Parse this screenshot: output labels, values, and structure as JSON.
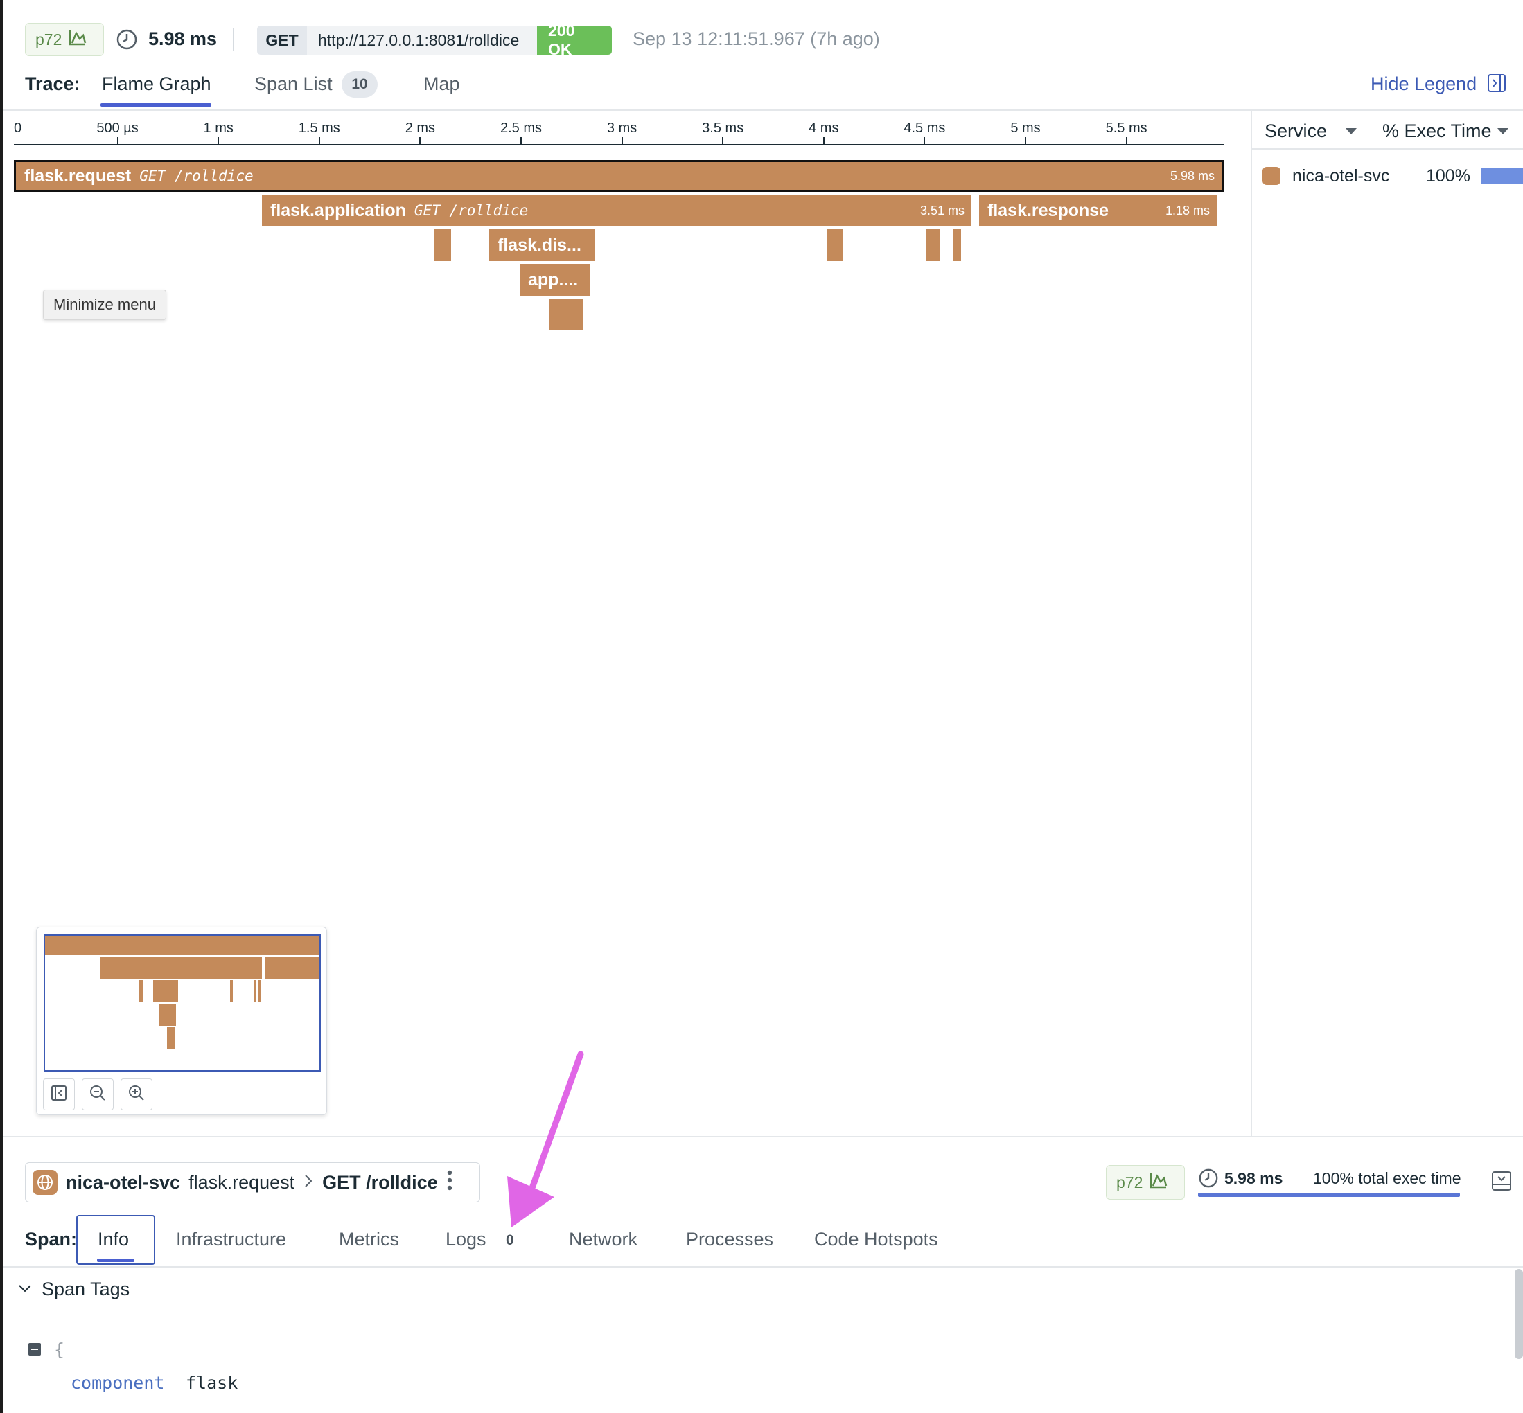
{
  "header": {
    "percentile": "p72",
    "duration": "5.98 ms",
    "method": "GET",
    "url": "http://127.0.0.1:8081/rolldice",
    "status": "200 OK",
    "timestamp": "Sep 13 12:11:51.967 (7h ago)"
  },
  "trace_tabs": {
    "label": "Trace:",
    "items": [
      {
        "label": "Flame Graph",
        "active": true
      },
      {
        "label": "Span List",
        "badge": "10"
      },
      {
        "label": "Map"
      }
    ],
    "hide_legend": "Hide Legend"
  },
  "axis": {
    "ticks": [
      "0",
      "500 µs",
      "1 ms",
      "1.5 ms",
      "2 ms",
      "2.5 ms",
      "3 ms",
      "3.5 ms",
      "4 ms",
      "4.5 ms",
      "5 ms",
      "5.5 ms"
    ]
  },
  "spans": {
    "request": {
      "name": "flask.request",
      "resource": "GET /rolldice",
      "duration": "5.98 ms"
    },
    "application": {
      "name": "flask.application",
      "resource": "GET /rolldice",
      "duration": "3.51 ms"
    },
    "response": {
      "name": "flask.response",
      "duration": "1.18 ms"
    },
    "dispatch": {
      "name": "flask.dis..."
    },
    "app": {
      "name": "app...."
    }
  },
  "tooltip": "Minimize menu",
  "legend": {
    "col_service": "Service",
    "col_exec": "% Exec Time",
    "rows": [
      {
        "service": "nica-otel-svc",
        "pct": "100%",
        "fraction": 1.0
      }
    ]
  },
  "span_panel": {
    "service": "nica-otel-svc",
    "operation": "flask.request",
    "resource": "GET /rolldice",
    "percentile": "p72",
    "duration": "5.98 ms",
    "exec": "100% total exec time",
    "tabs_label": "Span:",
    "tabs": [
      "Info",
      "Infrastructure",
      "Metrics",
      "Logs",
      "Network",
      "Processes",
      "Code Hotspots"
    ],
    "logs_count": "0",
    "section": "Span Tags",
    "tags": {
      "open_brace": "{",
      "key": "component",
      "value": "flask"
    }
  },
  "colors": {
    "span": "#c48a5a",
    "accent": "#4a5fd0",
    "ok": "#6bbf59",
    "arrow": "#e066e6"
  }
}
